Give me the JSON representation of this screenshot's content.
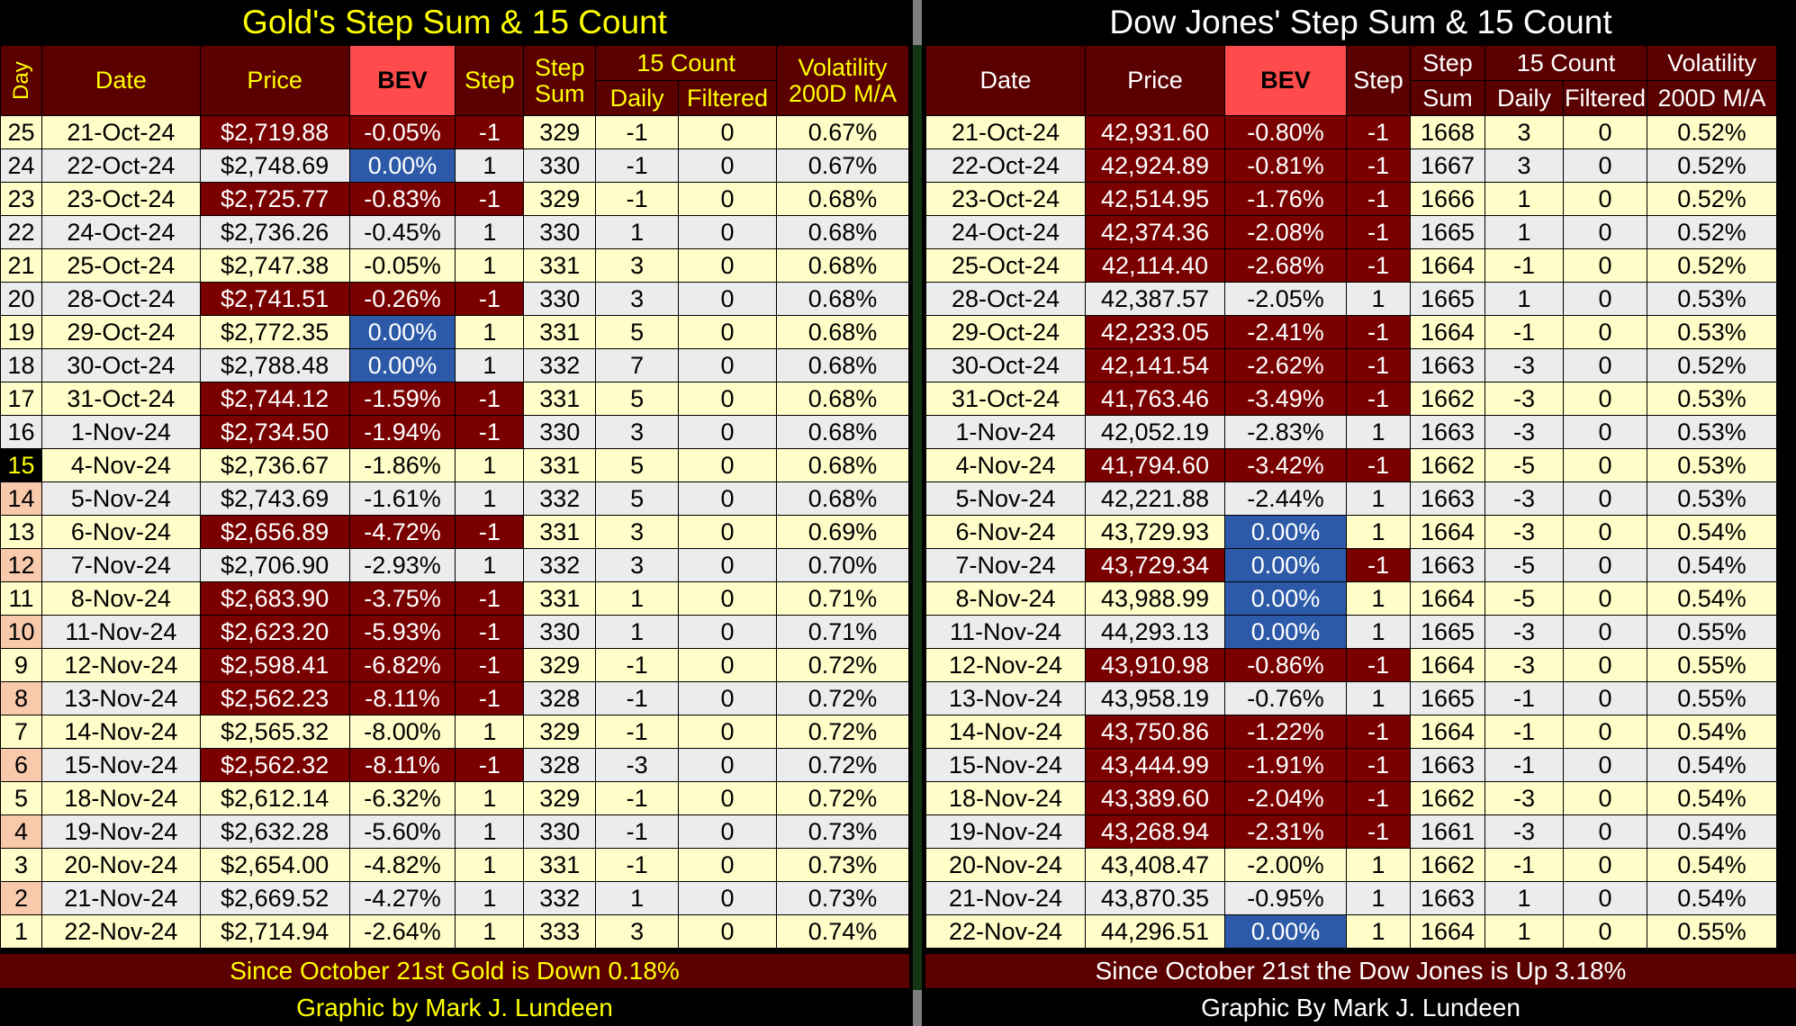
{
  "gold": {
    "title": "Gold's Step Sum & 15 Count",
    "headers": {
      "day": "Day",
      "date": "Date",
      "price": "Price",
      "bev": "BEV",
      "step": "Step",
      "step_sum_1": "Step",
      "step_sum_2": "Sum",
      "count15": "15 Count",
      "daily": "Daily",
      "filtered": "Filtered",
      "vol_1": "Volatility",
      "vol_2": "200D M/A"
    },
    "rows": [
      {
        "day": "25",
        "date": "21-Oct-24",
        "price": "$2,719.88",
        "bev": "-0.05%",
        "step": "-1",
        "sum": "329",
        "daily": "-1",
        "filtered": "0",
        "vol": "0.67%"
      },
      {
        "day": "24",
        "date": "22-Oct-24",
        "price": "$2,748.69",
        "bev": "0.00%",
        "step": "1",
        "sum": "330",
        "daily": "-1",
        "filtered": "0",
        "vol": "0.67%"
      },
      {
        "day": "23",
        "date": "23-Oct-24",
        "price": "$2,725.77",
        "bev": "-0.83%",
        "step": "-1",
        "sum": "329",
        "daily": "-1",
        "filtered": "0",
        "vol": "0.68%"
      },
      {
        "day": "22",
        "date": "24-Oct-24",
        "price": "$2,736.26",
        "bev": "-0.45%",
        "step": "1",
        "sum": "330",
        "daily": "1",
        "filtered": "0",
        "vol": "0.68%"
      },
      {
        "day": "21",
        "date": "25-Oct-24",
        "price": "$2,747.38",
        "bev": "-0.05%",
        "step": "1",
        "sum": "331",
        "daily": "3",
        "filtered": "0",
        "vol": "0.68%"
      },
      {
        "day": "20",
        "date": "28-Oct-24",
        "price": "$2,741.51",
        "bev": "-0.26%",
        "step": "-1",
        "sum": "330",
        "daily": "3",
        "filtered": "0",
        "vol": "0.68%"
      },
      {
        "day": "19",
        "date": "29-Oct-24",
        "price": "$2,772.35",
        "bev": "0.00%",
        "step": "1",
        "sum": "331",
        "daily": "5",
        "filtered": "0",
        "vol": "0.68%"
      },
      {
        "day": "18",
        "date": "30-Oct-24",
        "price": "$2,788.48",
        "bev": "0.00%",
        "step": "1",
        "sum": "332",
        "daily": "7",
        "filtered": "0",
        "vol": "0.68%"
      },
      {
        "day": "17",
        "date": "31-Oct-24",
        "price": "$2,744.12",
        "bev": "-1.59%",
        "step": "-1",
        "sum": "331",
        "daily": "5",
        "filtered": "0",
        "vol": "0.68%"
      },
      {
        "day": "16",
        "date": "1-Nov-24",
        "price": "$2,734.50",
        "bev": "-1.94%",
        "step": "-1",
        "sum": "330",
        "daily": "3",
        "filtered": "0",
        "vol": "0.68%"
      },
      {
        "day": "15",
        "date": "4-Nov-24",
        "price": "$2,736.67",
        "bev": "-1.86%",
        "step": "1",
        "sum": "331",
        "daily": "5",
        "filtered": "0",
        "vol": "0.68%"
      },
      {
        "day": "14",
        "date": "5-Nov-24",
        "price": "$2,743.69",
        "bev": "-1.61%",
        "step": "1",
        "sum": "332",
        "daily": "5",
        "filtered": "0",
        "vol": "0.68%"
      },
      {
        "day": "13",
        "date": "6-Nov-24",
        "price": "$2,656.89",
        "bev": "-4.72%",
        "step": "-1",
        "sum": "331",
        "daily": "3",
        "filtered": "0",
        "vol": "0.69%"
      },
      {
        "day": "12",
        "date": "7-Nov-24",
        "price": "$2,706.90",
        "bev": "-2.93%",
        "step": "1",
        "sum": "332",
        "daily": "3",
        "filtered": "0",
        "vol": "0.70%"
      },
      {
        "day": "11",
        "date": "8-Nov-24",
        "price": "$2,683.90",
        "bev": "-3.75%",
        "step": "-1",
        "sum": "331",
        "daily": "1",
        "filtered": "0",
        "vol": "0.71%"
      },
      {
        "day": "10",
        "date": "11-Nov-24",
        "price": "$2,623.20",
        "bev": "-5.93%",
        "step": "-1",
        "sum": "330",
        "daily": "1",
        "filtered": "0",
        "vol": "0.71%"
      },
      {
        "day": "9",
        "date": "12-Nov-24",
        "price": "$2,598.41",
        "bev": "-6.82%",
        "step": "-1",
        "sum": "329",
        "daily": "-1",
        "filtered": "0",
        "vol": "0.72%"
      },
      {
        "day": "8",
        "date": "13-Nov-24",
        "price": "$2,562.23",
        "bev": "-8.11%",
        "step": "-1",
        "sum": "328",
        "daily": "-1",
        "filtered": "0",
        "vol": "0.72%"
      },
      {
        "day": "7",
        "date": "14-Nov-24",
        "price": "$2,565.32",
        "bev": "-8.00%",
        "step": "1",
        "sum": "329",
        "daily": "-1",
        "filtered": "0",
        "vol": "0.72%"
      },
      {
        "day": "6",
        "date": "15-Nov-24",
        "price": "$2,562.32",
        "bev": "-8.11%",
        "step": "-1",
        "sum": "328",
        "daily": "-3",
        "filtered": "0",
        "vol": "0.72%"
      },
      {
        "day": "5",
        "date": "18-Nov-24",
        "price": "$2,612.14",
        "bev": "-6.32%",
        "step": "1",
        "sum": "329",
        "daily": "-1",
        "filtered": "0",
        "vol": "0.72%"
      },
      {
        "day": "4",
        "date": "19-Nov-24",
        "price": "$2,632.28",
        "bev": "-5.60%",
        "step": "1",
        "sum": "330",
        "daily": "-1",
        "filtered": "0",
        "vol": "0.73%"
      },
      {
        "day": "3",
        "date": "20-Nov-24",
        "price": "$2,654.00",
        "bev": "-4.82%",
        "step": "1",
        "sum": "331",
        "daily": "-1",
        "filtered": "0",
        "vol": "0.73%"
      },
      {
        "day": "2",
        "date": "21-Nov-24",
        "price": "$2,669.52",
        "bev": "-4.27%",
        "step": "1",
        "sum": "332",
        "daily": "1",
        "filtered": "0",
        "vol": "0.73%"
      },
      {
        "day": "1",
        "date": "22-Nov-24",
        "price": "$2,714.94",
        "bev": "-2.64%",
        "step": "1",
        "sum": "333",
        "daily": "3",
        "filtered": "0",
        "vol": "0.74%"
      }
    ],
    "summary": "Since October 21st Gold is Down 0.18%",
    "credit": "Graphic by Mark J. Lundeen"
  },
  "dow": {
    "title": "Dow Jones' Step Sum & 15 Count",
    "headers": {
      "date": "Date",
      "price": "Price",
      "bev": "BEV",
      "step": "Step",
      "step_sum_1": "Step",
      "step_sum_2": "Sum",
      "count15": "15 Count",
      "daily": "Daily",
      "filtered": "Filtered",
      "vol_1": "Volatility",
      "vol_2": "200D M/A"
    },
    "rows": [
      {
        "date": "21-Oct-24",
        "price": "42,931.60",
        "bev": "-0.80%",
        "step": "-1",
        "sum": "1668",
        "daily": "3",
        "filtered": "0",
        "vol": "0.52%"
      },
      {
        "date": "22-Oct-24",
        "price": "42,924.89",
        "bev": "-0.81%",
        "step": "-1",
        "sum": "1667",
        "daily": "3",
        "filtered": "0",
        "vol": "0.52%"
      },
      {
        "date": "23-Oct-24",
        "price": "42,514.95",
        "bev": "-1.76%",
        "step": "-1",
        "sum": "1666",
        "daily": "1",
        "filtered": "0",
        "vol": "0.52%"
      },
      {
        "date": "24-Oct-24",
        "price": "42,374.36",
        "bev": "-2.08%",
        "step": "-1",
        "sum": "1665",
        "daily": "1",
        "filtered": "0",
        "vol": "0.52%"
      },
      {
        "date": "25-Oct-24",
        "price": "42,114.40",
        "bev": "-2.68%",
        "step": "-1",
        "sum": "1664",
        "daily": "-1",
        "filtered": "0",
        "vol": "0.52%"
      },
      {
        "date": "28-Oct-24",
        "price": "42,387.57",
        "bev": "-2.05%",
        "step": "1",
        "sum": "1665",
        "daily": "1",
        "filtered": "0",
        "vol": "0.53%"
      },
      {
        "date": "29-Oct-24",
        "price": "42,233.05",
        "bev": "-2.41%",
        "step": "-1",
        "sum": "1664",
        "daily": "-1",
        "filtered": "0",
        "vol": "0.53%"
      },
      {
        "date": "30-Oct-24",
        "price": "42,141.54",
        "bev": "-2.62%",
        "step": "-1",
        "sum": "1663",
        "daily": "-3",
        "filtered": "0",
        "vol": "0.52%"
      },
      {
        "date": "31-Oct-24",
        "price": "41,763.46",
        "bev": "-3.49%",
        "step": "-1",
        "sum": "1662",
        "daily": "-3",
        "filtered": "0",
        "vol": "0.53%"
      },
      {
        "date": "1-Nov-24",
        "price": "42,052.19",
        "bev": "-2.83%",
        "step": "1",
        "sum": "1663",
        "daily": "-3",
        "filtered": "0",
        "vol": "0.53%"
      },
      {
        "date": "4-Nov-24",
        "price": "41,794.60",
        "bev": "-3.42%",
        "step": "-1",
        "sum": "1662",
        "daily": "-5",
        "filtered": "0",
        "vol": "0.53%"
      },
      {
        "date": "5-Nov-24",
        "price": "42,221.88",
        "bev": "-2.44%",
        "step": "1",
        "sum": "1663",
        "daily": "-3",
        "filtered": "0",
        "vol": "0.53%"
      },
      {
        "date": "6-Nov-24",
        "price": "43,729.93",
        "bev": "0.00%",
        "step": "1",
        "sum": "1664",
        "daily": "-3",
        "filtered": "0",
        "vol": "0.54%"
      },
      {
        "date": "7-Nov-24",
        "price": "43,729.34",
        "bev": "0.00%",
        "step": "-1",
        "sum": "1663",
        "daily": "-5",
        "filtered": "0",
        "vol": "0.54%"
      },
      {
        "date": "8-Nov-24",
        "price": "43,988.99",
        "bev": "0.00%",
        "step": "1",
        "sum": "1664",
        "daily": "-5",
        "filtered": "0",
        "vol": "0.54%"
      },
      {
        "date": "11-Nov-24",
        "price": "44,293.13",
        "bev": "0.00%",
        "step": "1",
        "sum": "1665",
        "daily": "-3",
        "filtered": "0",
        "vol": "0.55%"
      },
      {
        "date": "12-Nov-24",
        "price": "43,910.98",
        "bev": "-0.86%",
        "step": "-1",
        "sum": "1664",
        "daily": "-3",
        "filtered": "0",
        "vol": "0.55%"
      },
      {
        "date": "13-Nov-24",
        "price": "43,958.19",
        "bev": "-0.76%",
        "step": "1",
        "sum": "1665",
        "daily": "-1",
        "filtered": "0",
        "vol": "0.55%"
      },
      {
        "date": "14-Nov-24",
        "price": "43,750.86",
        "bev": "-1.22%",
        "step": "-1",
        "sum": "1664",
        "daily": "-1",
        "filtered": "0",
        "vol": "0.54%"
      },
      {
        "date": "15-Nov-24",
        "price": "43,444.99",
        "bev": "-1.91%",
        "step": "-1",
        "sum": "1663",
        "daily": "-1",
        "filtered": "0",
        "vol": "0.54%"
      },
      {
        "date": "18-Nov-24",
        "price": "43,389.60",
        "bev": "-2.04%",
        "step": "-1",
        "sum": "1662",
        "daily": "-3",
        "filtered": "0",
        "vol": "0.54%"
      },
      {
        "date": "19-Nov-24",
        "price": "43,268.94",
        "bev": "-2.31%",
        "step": "-1",
        "sum": "1661",
        "daily": "-3",
        "filtered": "0",
        "vol": "0.54%"
      },
      {
        "date": "20-Nov-24",
        "price": "43,408.47",
        "bev": "-2.00%",
        "step": "1",
        "sum": "1662",
        "daily": "-1",
        "filtered": "0",
        "vol": "0.54%"
      },
      {
        "date": "21-Nov-24",
        "price": "43,870.35",
        "bev": "-0.95%",
        "step": "1",
        "sum": "1663",
        "daily": "1",
        "filtered": "0",
        "vol": "0.54%"
      },
      {
        "date": "22-Nov-24",
        "price": "44,296.51",
        "bev": "0.00%",
        "step": "1",
        "sum": "1664",
        "daily": "1",
        "filtered": "0",
        "vol": "0.55%"
      }
    ],
    "summary": "Since October 21st the Dow Jones is Up 3.18%",
    "credit": "Graphic By Mark J. Lundeen"
  },
  "colors": {
    "header_bg": "#5a0000",
    "bev_header_bg": "#ff4b4b",
    "down_step_bg": "#7a0000",
    "bev_zero_bg": "#2d5aa8",
    "odd_row_bg": "#fffdc8",
    "even_row_bg": "#ececec",
    "gold_title": "#ffff00",
    "dow_title": "#ffffff"
  }
}
